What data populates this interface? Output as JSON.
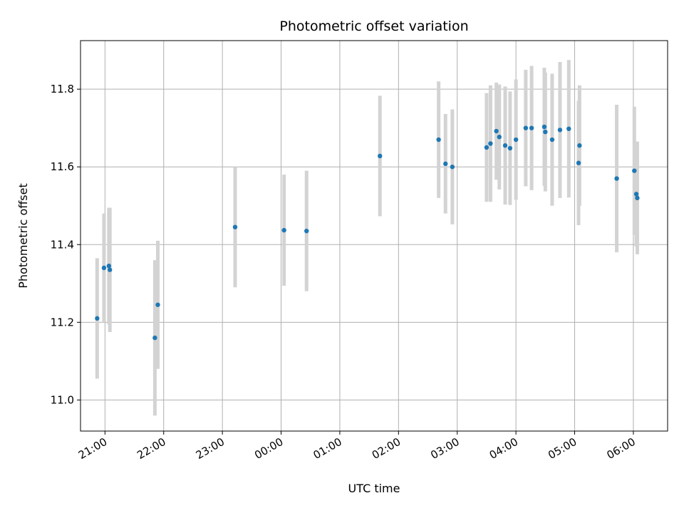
{
  "chart_data": {
    "type": "scatter",
    "title": "Photometric offset variation",
    "xlabel": "UTC time",
    "ylabel": "Photometric offset",
    "x_axis": {
      "kind": "time",
      "range": [
        "20:35",
        "06:35"
      ],
      "ticks": [
        "21:00",
        "22:00",
        "23:00",
        "00:00",
        "01:00",
        "02:00",
        "03:00",
        "04:00",
        "05:00",
        "06:00"
      ],
      "tick_labels_rotated": true
    },
    "y_axis": {
      "range": [
        10.92,
        11.925
      ],
      "ticks": [
        11.0,
        11.2,
        11.4,
        11.6,
        11.8
      ],
      "tick_labels": [
        "11.0",
        "11.2",
        "11.4",
        "11.6",
        "11.8"
      ]
    },
    "grid": true,
    "colors": {
      "point": "#1f77b4",
      "errorbar": "#d3d3d3",
      "grid": "#b0b0b0",
      "axes": "#000000"
    },
    "series": [
      {
        "marker": "dot",
        "points": [
          {
            "x": "20:52",
            "y": 11.21,
            "err": 0.155
          },
          {
            "x": "20:59",
            "y": 11.34,
            "err": 0.14
          },
          {
            "x": "21:04",
            "y": 11.345,
            "err": 0.15
          },
          {
            "x": "21:05",
            "y": 11.335,
            "err": 0.16
          },
          {
            "x": "21:51",
            "y": 11.16,
            "err": 0.2
          },
          {
            "x": "21:54",
            "y": 11.245,
            "err": 0.165
          },
          {
            "x": "23:13",
            "y": 11.445,
            "err": 0.155
          },
          {
            "x": "00:03",
            "y": 11.437,
            "err": 0.143
          },
          {
            "x": "00:26",
            "y": 11.435,
            "err": 0.155
          },
          {
            "x": "01:41",
            "y": 11.628,
            "err": 0.155
          },
          {
            "x": "02:41",
            "y": 11.67,
            "err": 0.15
          },
          {
            "x": "02:48",
            "y": 11.608,
            "err": 0.128
          },
          {
            "x": "02:55",
            "y": 11.6,
            "err": 0.148
          },
          {
            "x": "03:30",
            "y": 11.65,
            "err": 0.14
          },
          {
            "x": "03:34",
            "y": 11.66,
            "err": 0.15
          },
          {
            "x": "03:40",
            "y": 11.692,
            "err": 0.125
          },
          {
            "x": "03:43",
            "y": 11.677,
            "err": 0.135
          },
          {
            "x": "03:49",
            "y": 11.655,
            "err": 0.152
          },
          {
            "x": "03:54",
            "y": 11.648,
            "err": 0.146
          },
          {
            "x": "04:00",
            "y": 11.67,
            "err": 0.155
          },
          {
            "x": "04:10",
            "y": 11.7,
            "err": 0.15
          },
          {
            "x": "04:16",
            "y": 11.7,
            "err": 0.16
          },
          {
            "x": "04:29",
            "y": 11.703,
            "err": 0.152
          },
          {
            "x": "04:30",
            "y": 11.69,
            "err": 0.153
          },
          {
            "x": "04:37",
            "y": 11.67,
            "err": 0.17
          },
          {
            "x": "04:45",
            "y": 11.695,
            "err": 0.175
          },
          {
            "x": "04:54",
            "y": 11.698,
            "err": 0.177
          },
          {
            "x": "05:04",
            "y": 11.61,
            "err": 0.16
          },
          {
            "x": "05:05",
            "y": 11.655,
            "err": 0.155
          },
          {
            "x": "05:43",
            "y": 11.57,
            "err": 0.19
          },
          {
            "x": "06:01",
            "y": 11.59,
            "err": 0.165
          },
          {
            "x": "06:03",
            "y": 11.53,
            "err": 0.135
          },
          {
            "x": "06:04",
            "y": 11.52,
            "err": 0.145
          }
        ]
      }
    ]
  }
}
